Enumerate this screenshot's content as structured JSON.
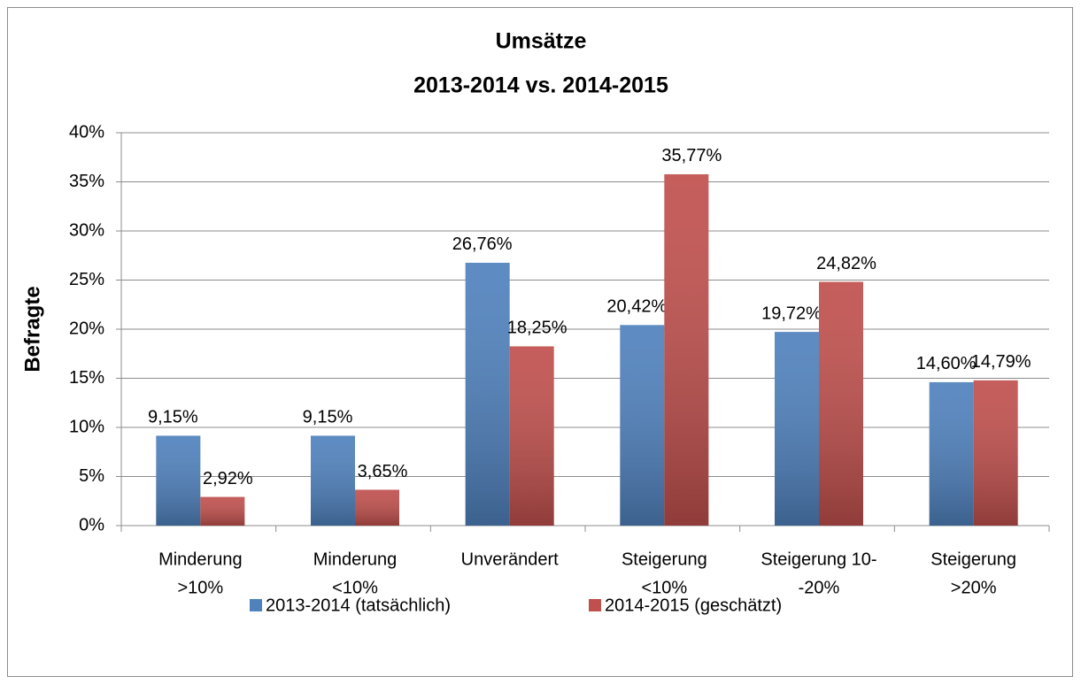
{
  "chart_data": {
    "type": "bar",
    "title": [
      "Umsätze",
      "2013-2014 vs. 2014-2015"
    ],
    "y_label": "Befragte",
    "categories": [
      [
        "Minderung",
        ">10%"
      ],
      [
        "Minderung",
        "<10%"
      ],
      [
        "Unverändert"
      ],
      [
        "Steigerung",
        "<10%"
      ],
      [
        "Steigerung 10-",
        "-20%"
      ],
      [
        "Steigerung",
        ">20%"
      ]
    ],
    "series": [
      {
        "name": "2013-2014 (tatsächlich)",
        "color": "#4f81bd",
        "values": [
          9.15,
          9.15,
          26.76,
          20.42,
          19.72,
          14.6
        ],
        "value_labels": [
          "9,15%",
          "9,15%",
          "26,76%",
          "20,42%",
          "19,72%",
          "14,60%"
        ]
      },
      {
        "name": "2014-2015 (geschätzt)",
        "color": "#c0504d",
        "values": [
          2.92,
          3.65,
          18.25,
          35.77,
          24.82,
          14.79
        ],
        "value_labels": [
          "2,92%",
          "3,65%",
          "18,25%",
          "35,77%",
          "24,82%",
          "14,79%"
        ]
      }
    ],
    "ylim": [
      0,
      40
    ],
    "yticks": [
      {
        "value": 0,
        "label": "0%"
      },
      {
        "value": 5,
        "label": "5%"
      },
      {
        "value": 10,
        "label": "10%"
      },
      {
        "value": 15,
        "label": "15%"
      },
      {
        "value": 20,
        "label": "20%"
      },
      {
        "value": 25,
        "label": "25%"
      },
      {
        "value": 30,
        "label": "30%"
      },
      {
        "value": 35,
        "label": "35%"
      },
      {
        "value": 40,
        "label": "40%"
      }
    ],
    "grid": true,
    "legend": "bottom"
  }
}
